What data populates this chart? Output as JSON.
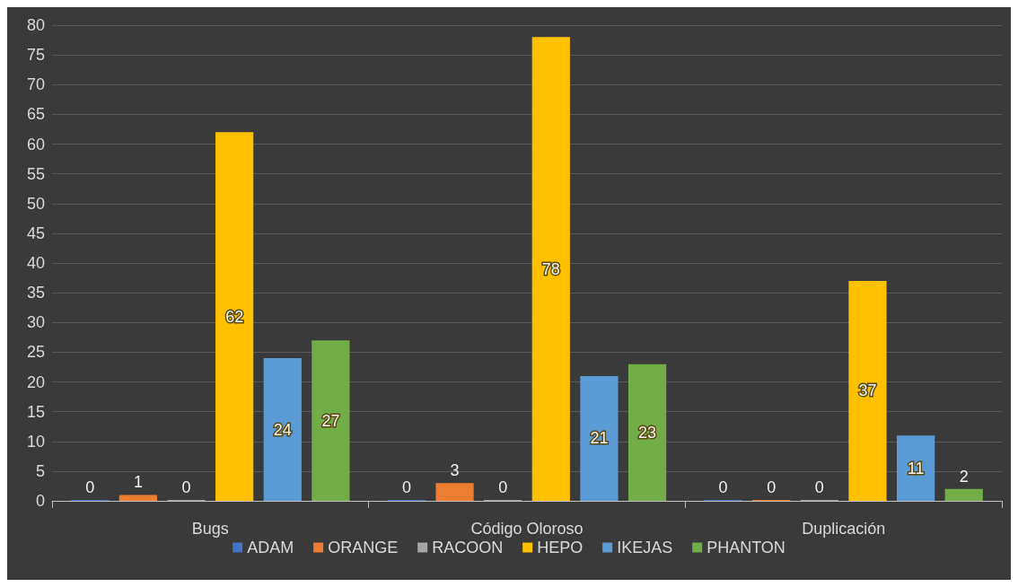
{
  "chart_data": {
    "type": "bar",
    "categories": [
      "Bugs",
      "Código Oloroso",
      "Duplicación"
    ],
    "series": [
      {
        "name": "ADAM",
        "color": "#4472c4",
        "values": [
          0,
          0,
          0
        ]
      },
      {
        "name": "ORANGE",
        "color": "#ed7d31",
        "values": [
          1,
          3,
          0
        ]
      },
      {
        "name": "RACOON",
        "color": "#a5a5a5",
        "values": [
          0,
          0,
          0
        ]
      },
      {
        "name": "HEPO",
        "color": "#ffc000",
        "values": [
          62,
          78,
          37
        ]
      },
      {
        "name": "IKEJAS",
        "color": "#5b9bd5",
        "values": [
          24,
          21,
          11
        ]
      },
      {
        "name": "PHANTON",
        "color": "#70ad47",
        "values": [
          27,
          23,
          2
        ]
      }
    ],
    "ylim": [
      0,
      80
    ],
    "yticks": [
      0,
      5,
      10,
      15,
      20,
      25,
      30,
      35,
      40,
      45,
      50,
      55,
      60,
      65,
      70,
      75,
      80
    ],
    "grid": "y",
    "legend": "bottom",
    "data_labels": true
  }
}
